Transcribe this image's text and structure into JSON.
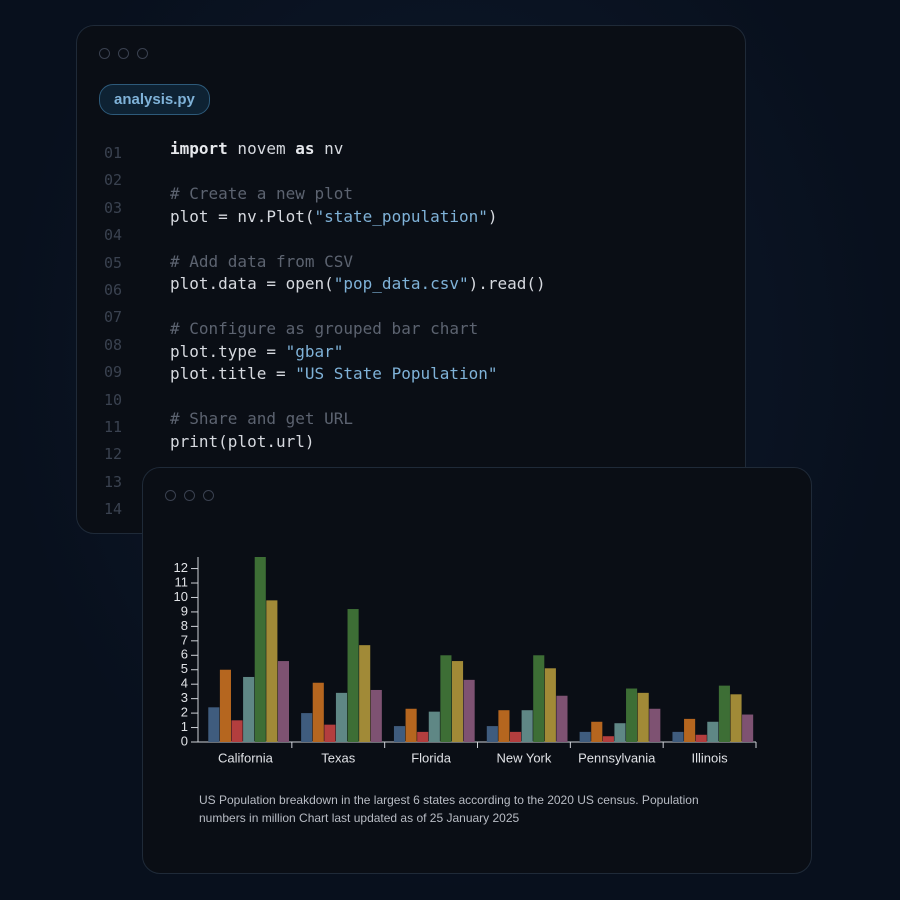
{
  "editor": {
    "filename": "analysis.py",
    "line_numbers": [
      "01",
      "02",
      "03",
      "04",
      "05",
      "06",
      "07",
      "08",
      "09",
      "10",
      "11",
      "12",
      "13",
      "14"
    ],
    "lines": [
      [
        {
          "text": "import",
          "kind": "keyword"
        },
        {
          "text": " novem ",
          "kind": "plain"
        },
        {
          "text": "as",
          "kind": "keyword"
        },
        {
          "text": " nv",
          "kind": "plain"
        }
      ],
      [],
      [
        {
          "text": "# Create a new plot",
          "kind": "comment"
        }
      ],
      [
        {
          "text": "plot = nv.Plot(",
          "kind": "plain"
        },
        {
          "text": "\"state_population\"",
          "kind": "string"
        },
        {
          "text": ")",
          "kind": "plain"
        }
      ],
      [],
      [
        {
          "text": "# Add data from CSV",
          "kind": "comment"
        }
      ],
      [
        {
          "text": "plot.data = open(",
          "kind": "plain"
        },
        {
          "text": "\"pop_data.csv\"",
          "kind": "string"
        },
        {
          "text": ").read()",
          "kind": "plain"
        }
      ],
      [],
      [
        {
          "text": "# Configure as grouped bar chart",
          "kind": "comment"
        }
      ],
      [
        {
          "text": "plot.type = ",
          "kind": "plain"
        },
        {
          "text": "\"gbar\"",
          "kind": "string"
        }
      ],
      [
        {
          "text": "plot.title = ",
          "kind": "plain"
        },
        {
          "text": "\"US State Population\"",
          "kind": "string"
        }
      ],
      [],
      [
        {
          "text": "# Share and get URL",
          "kind": "comment"
        }
      ],
      [
        {
          "text": "print(plot.url)",
          "kind": "plain"
        }
      ]
    ]
  },
  "chart_data": {
    "type": "gbar",
    "categories": [
      "California",
      "Texas",
      "Florida",
      "New York",
      "Pennsylvania",
      "Illinois"
    ],
    "series": [
      {
        "color": "#3f5c7e",
        "values": [
          2.4,
          2.0,
          1.1,
          1.1,
          0.7,
          0.7
        ]
      },
      {
        "color": "#b5661f",
        "values": [
          5.0,
          4.1,
          2.3,
          2.2,
          1.4,
          1.6
        ]
      },
      {
        "color": "#b33e3e",
        "values": [
          1.5,
          1.2,
          0.7,
          0.7,
          0.4,
          0.5
        ]
      },
      {
        "color": "#5f8785",
        "values": [
          4.5,
          3.4,
          2.1,
          2.2,
          1.3,
          1.4
        ]
      },
      {
        "color": "#3d6e35",
        "values": [
          12.8,
          9.2,
          6.0,
          6.0,
          3.7,
          3.9
        ]
      },
      {
        "color": "#a18a37",
        "values": [
          9.8,
          6.7,
          5.6,
          5.1,
          3.4,
          3.3
        ]
      },
      {
        "color": "#7e5272",
        "values": [
          5.6,
          3.6,
          4.3,
          3.2,
          2.3,
          1.9
        ]
      }
    ],
    "ylim": [
      0,
      12.8
    ],
    "yticks": [
      0,
      1,
      2,
      3,
      4,
      5,
      6,
      7,
      8,
      9,
      10,
      11,
      12
    ],
    "caption": "US Population breakdown in the largest 6 states according to the 2020 US census. Population numbers in million Chart last updated as of 25 January 2025"
  }
}
